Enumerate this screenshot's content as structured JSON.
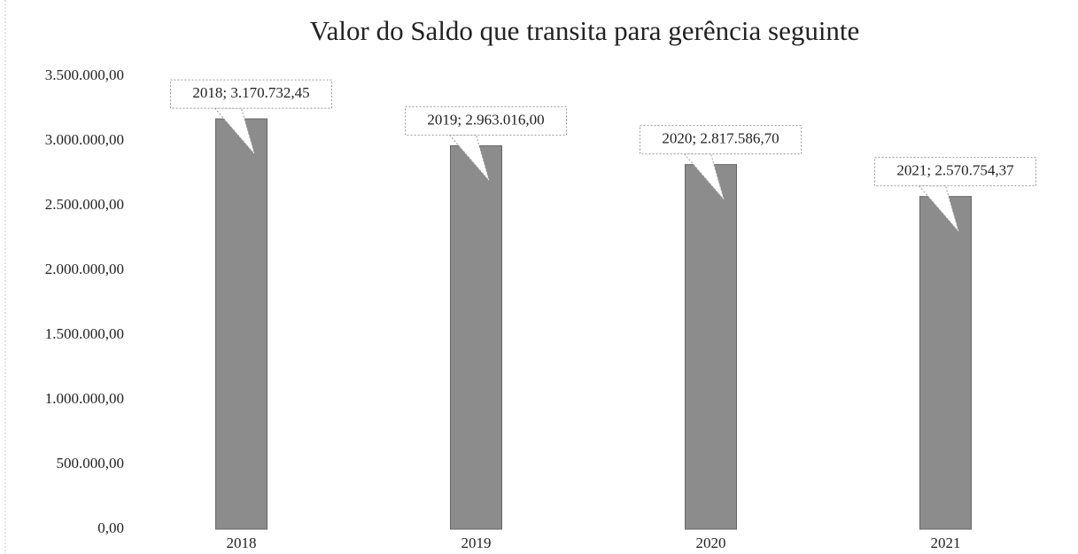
{
  "chart_data": {
    "type": "bar",
    "title": "Valor do Saldo que transita para gerência seguinte",
    "categories": [
      "2018",
      "2019",
      "2020",
      "2021"
    ],
    "values": [
      3170732.45,
      2963016.0,
      2817586.7,
      2570754.37
    ],
    "value_labels": [
      "2018; 3.170.732,45",
      "2019; 2.963.016,00",
      "2020; 2.817.586,70",
      "2021; 2.570.754,37"
    ],
    "color": "#8c8c8c",
    "ylim": [
      0,
      3500000
    ],
    "yticks": [
      {
        "value": 0,
        "label": "0,00"
      },
      {
        "value": 500000,
        "label": "500.000,00"
      },
      {
        "value": 1000000,
        "label": "1.000.000,00"
      },
      {
        "value": 1500000,
        "label": "1.500.000,00"
      },
      {
        "value": 2000000,
        "label": "2.000.000,00"
      },
      {
        "value": 2500000,
        "label": "2.500.000,00"
      },
      {
        "value": 3000000,
        "label": "3.000.000,00"
      },
      {
        "value": 3500000,
        "label": "3.500.000,00"
      }
    ],
    "grid": false
  }
}
